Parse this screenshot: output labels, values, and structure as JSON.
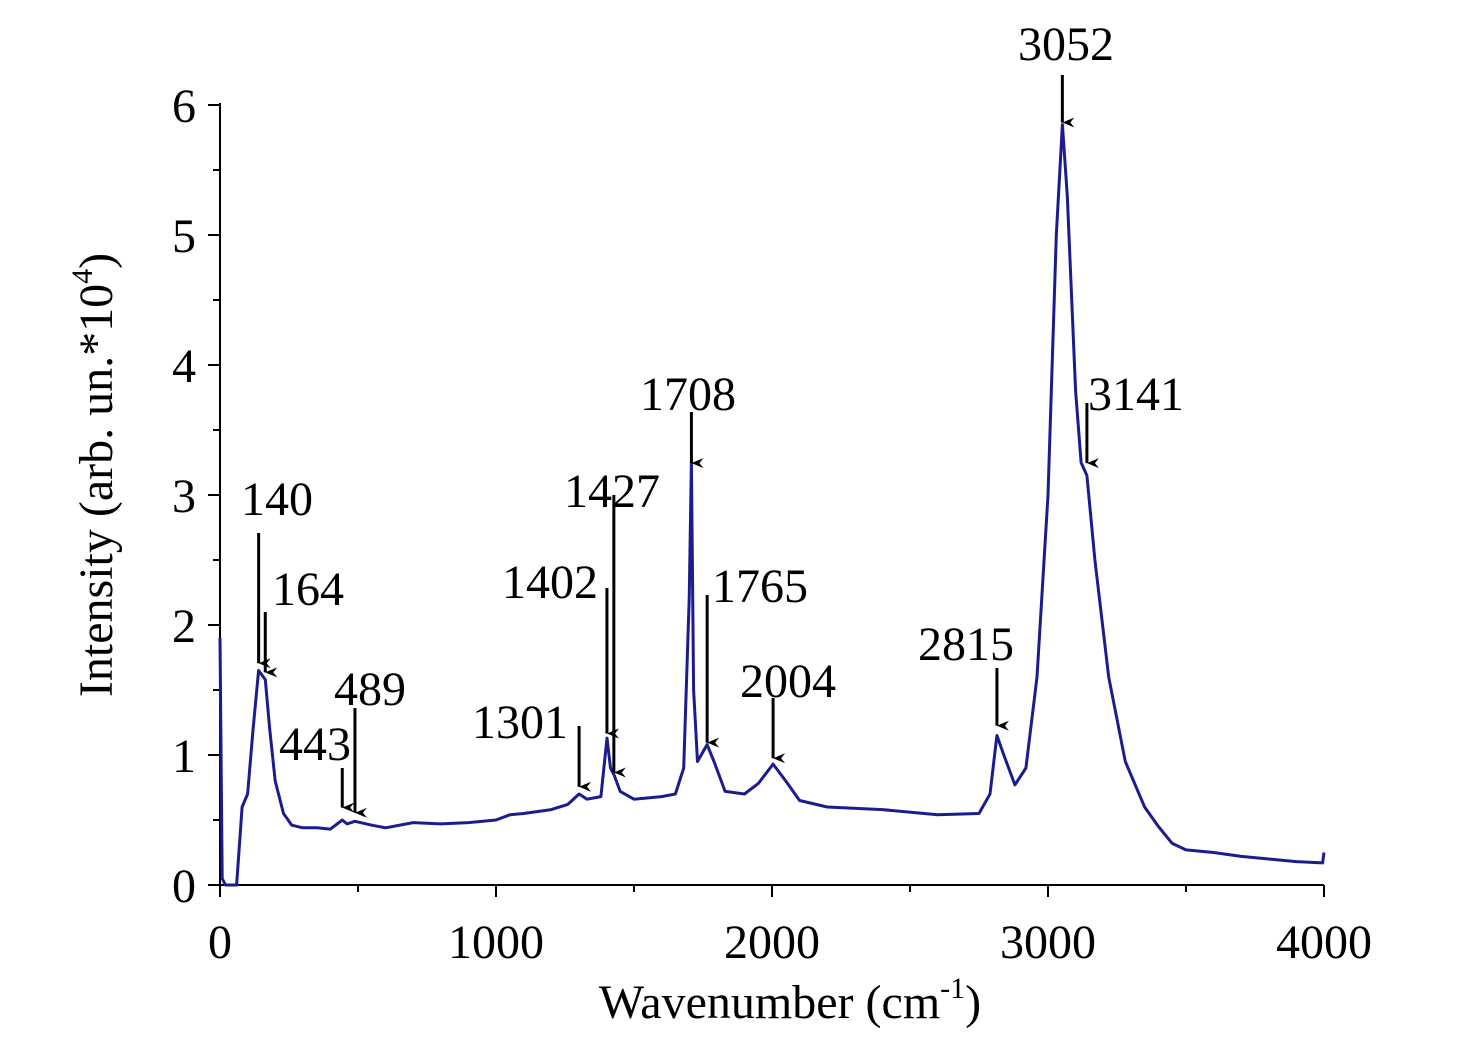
{
  "chart_data": {
    "type": "line",
    "xlabel": {
      "text": "Wavenumber (cm",
      "sup": "-1",
      "tail": ")"
    },
    "ylabel": {
      "text": "Intensity (arb. un.*10",
      "sup": "4",
      "tail": ")"
    },
    "xlim": [
      0,
      4000
    ],
    "ylim": [
      0,
      6
    ],
    "xticks": [
      0,
      1000,
      2000,
      3000,
      4000
    ],
    "yticks": [
      0,
      1,
      2,
      3,
      4,
      5,
      6
    ],
    "xminorticks": [
      500,
      1500,
      2500,
      3500
    ],
    "yminorticks": [
      0.5,
      1.5,
      2.5,
      3.5,
      4.5,
      5.5
    ],
    "series": [
      {
        "color": "#1c1c8e",
        "x": [
          0,
          8,
          20,
          60,
          80,
          100,
          120,
          140,
          164,
          180,
          200,
          230,
          260,
          300,
          350,
          400,
          443,
          460,
          489,
          550,
          600,
          700,
          800,
          900,
          1000,
          1050,
          1100,
          1200,
          1260,
          1301,
          1330,
          1380,
          1402,
          1415,
          1427,
          1450,
          1500,
          1600,
          1650,
          1680,
          1700,
          1708,
          1716,
          1730,
          1765,
          1790,
          1830,
          1900,
          1950,
          2004,
          2050,
          2100,
          2200,
          2400,
          2600,
          2750,
          2790,
          2815,
          2840,
          2880,
          2920,
          2960,
          3000,
          3030,
          3052,
          3070,
          3100,
          3120,
          3141,
          3170,
          3220,
          3280,
          3350,
          3400,
          3450,
          3500,
          3600,
          3700,
          3800,
          3900,
          3995,
          4000
        ],
        "values": [
          1.9,
          0.05,
          0,
          0,
          0.6,
          0.7,
          1.2,
          1.65,
          1.58,
          1.2,
          0.8,
          0.55,
          0.46,
          0.44,
          0.44,
          0.43,
          0.5,
          0.47,
          0.49,
          0.46,
          0.44,
          0.48,
          0.47,
          0.48,
          0.5,
          0.54,
          0.55,
          0.58,
          0.62,
          0.7,
          0.66,
          0.68,
          1.13,
          0.9,
          0.85,
          0.72,
          0.66,
          0.68,
          0.7,
          0.9,
          2.2,
          3.25,
          1.5,
          0.95,
          1.08,
          0.95,
          0.72,
          0.7,
          0.78,
          0.93,
          0.8,
          0.65,
          0.6,
          0.58,
          0.54,
          0.55,
          0.7,
          1.15,
          1.0,
          0.77,
          0.9,
          1.6,
          3.0,
          5.0,
          5.85,
          5.3,
          3.8,
          3.25,
          3.15,
          2.5,
          1.6,
          0.95,
          0.6,
          0.45,
          0.32,
          0.27,
          0.25,
          0.22,
          0.2,
          0.18,
          0.17,
          0.25
        ]
      }
    ],
    "annotations": [
      {
        "text": "140",
        "x": 140,
        "y": 1.69
      },
      {
        "text": "164",
        "x": 164,
        "y": 1.62
      },
      {
        "text": "443",
        "x": 443,
        "y": 0.58
      },
      {
        "text": "489",
        "x": 489,
        "y": 0.54
      },
      {
        "text": "1301",
        "x": 1301,
        "y": 0.74
      },
      {
        "text": "1402",
        "x": 1402,
        "y": 1.15
      },
      {
        "text": "1427",
        "x": 1427,
        "y": 0.85
      },
      {
        "text": "1708",
        "x": 1708,
        "y": 3.23
      },
      {
        "text": "1765",
        "x": 1765,
        "y": 1.08
      },
      {
        "text": "2004",
        "x": 2004,
        "y": 0.96
      },
      {
        "text": "2815",
        "x": 2815,
        "y": 1.21
      },
      {
        "text": "3052",
        "x": 3052,
        "y": 5.85
      },
      {
        "text": "3141",
        "x": 3141,
        "y": 3.23
      }
    ]
  }
}
